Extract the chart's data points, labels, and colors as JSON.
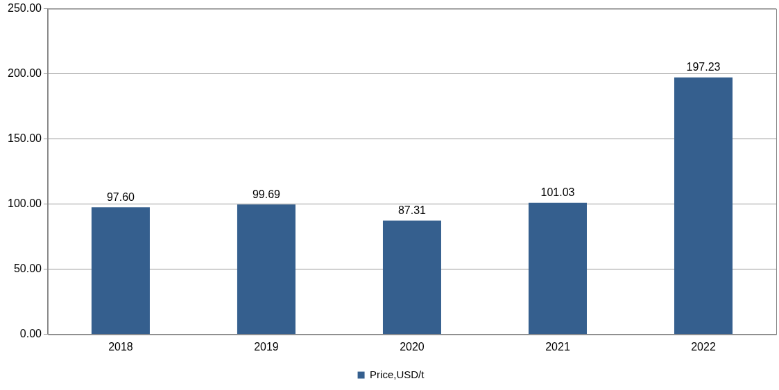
{
  "chart_data": {
    "type": "bar",
    "categories": [
      "2018",
      "2019",
      "2020",
      "2021",
      "2022"
    ],
    "series": [
      {
        "name": "Price,USD/t",
        "color": "#355f8e",
        "values": [
          97.6,
          99.69,
          87.31,
          101.03,
          197.23
        ],
        "value_labels": [
          "97.60",
          "99.69",
          "87.31",
          "101.03",
          "197.23"
        ]
      }
    ],
    "ylim": [
      0,
      250
    ],
    "yticks": [
      {
        "value": 0,
        "label": "0.00"
      },
      {
        "value": 50,
        "label": "50.00"
      },
      {
        "value": 100,
        "label": "100.00"
      },
      {
        "value": 150,
        "label": "150.00"
      },
      {
        "value": 200,
        "label": "200.00"
      },
      {
        "value": 250,
        "label": "250.00"
      }
    ],
    "grid": "y",
    "legend": "bottom"
  }
}
